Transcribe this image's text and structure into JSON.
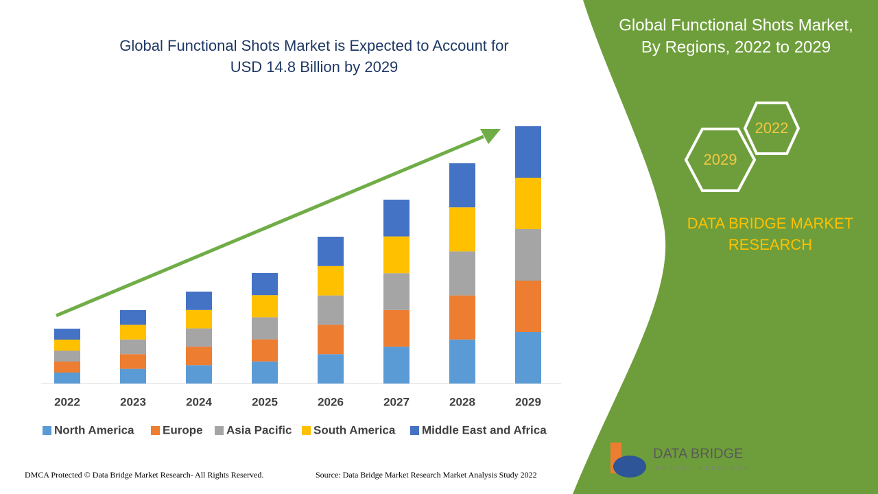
{
  "chart_data": {
    "type": "stacked_bar",
    "title": [
      "Global Functional Shots Market is Expected to Account for",
      "USD 14.8 Billion by 2029"
    ],
    "categories": [
      "2022",
      "2023",
      "2024",
      "2025",
      "2026",
      "2027",
      "2028",
      "2029"
    ],
    "series": [
      {
        "name": "North America",
        "color": "#5b9bd5",
        "values": [
          16,
          21.4,
          26.8,
          32.2,
          42.8,
          53.6,
          64.2,
          75
        ]
      },
      {
        "name": "Europe",
        "color": "#ed7d31",
        "values": [
          16,
          21.4,
          26.8,
          32.2,
          42.8,
          53.6,
          64.2,
          75
        ]
      },
      {
        "name": "Asia Pacific",
        "color": "#a5a5a5",
        "values": [
          16,
          21.4,
          26.8,
          32.2,
          42.8,
          53.6,
          64.2,
          75
        ]
      },
      {
        "name": "South America",
        "color": "#ffc000",
        "values": [
          16,
          21.4,
          26.8,
          32.2,
          42.8,
          53.6,
          64.2,
          75
        ]
      },
      {
        "name": "Middle East and Africa",
        "color": "#4472c4",
        "values": [
          16,
          21.4,
          26.8,
          32.2,
          42.8,
          53.6,
          64.2,
          75
        ]
      }
    ],
    "ylim": [
      0,
      400
    ],
    "legend": "bottom"
  },
  "panel": {
    "title": [
      "Global Functional Shots Market,",
      "By Regions, 2022 to 2029"
    ],
    "hexagons": [
      "2022",
      "2029"
    ],
    "brand": [
      "DATA BRIDGE MARKET",
      "RESEARCH"
    ]
  },
  "logo": {
    "name": "DATA BRIDGE",
    "tagline": "MARKET RESEARCH"
  },
  "footer": {
    "copyright": "DMCA Protected © Data Bridge Market Research- All Rights Reserved.",
    "source": "Source: Data Bridge Market Research Market Analysis Study 2022"
  }
}
